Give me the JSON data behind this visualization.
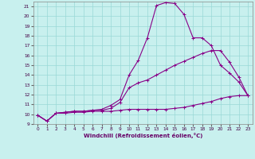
{
  "xlabel": "Windchill (Refroidissement éolien,°C)",
  "xlim": [
    -0.5,
    23.5
  ],
  "ylim": [
    9,
    21.5
  ],
  "xticks": [
    0,
    1,
    2,
    3,
    4,
    5,
    6,
    7,
    8,
    9,
    10,
    11,
    12,
    13,
    14,
    15,
    16,
    17,
    18,
    19,
    20,
    21,
    22,
    23
  ],
  "yticks": [
    9,
    10,
    11,
    12,
    13,
    14,
    15,
    16,
    17,
    18,
    19,
    20,
    21
  ],
  "bg_color": "#c8f0ee",
  "grid_color": "#99d9d6",
  "line_color": "#880088",
  "line1_x": [
    0,
    1,
    2,
    3,
    4,
    5,
    6,
    7,
    8,
    9,
    10,
    11,
    12,
    13,
    14,
    15,
    16,
    17,
    18,
    19,
    20,
    21,
    22,
    23
  ],
  "line1_y": [
    9.9,
    9.3,
    10.1,
    10.1,
    10.2,
    10.2,
    10.3,
    10.3,
    10.3,
    10.4,
    10.5,
    10.5,
    10.5,
    10.5,
    10.5,
    10.6,
    10.7,
    10.9,
    11.1,
    11.3,
    11.6,
    11.8,
    11.9,
    11.9
  ],
  "line2_x": [
    0,
    1,
    2,
    3,
    4,
    5,
    6,
    7,
    8,
    9,
    10,
    11,
    12,
    13,
    14,
    15,
    16,
    17,
    18,
    19,
    20,
    21,
    22,
    23
  ],
  "line2_y": [
    9.9,
    9.3,
    10.1,
    10.2,
    10.3,
    10.3,
    10.4,
    10.4,
    10.6,
    11.2,
    12.7,
    13.2,
    13.5,
    14.0,
    14.5,
    15.0,
    15.4,
    15.8,
    16.2,
    16.5,
    16.5,
    15.3,
    13.8,
    11.9
  ],
  "line3_x": [
    0,
    1,
    2,
    3,
    4,
    5,
    6,
    7,
    8,
    9,
    10,
    11,
    12,
    13,
    14,
    15,
    16,
    17,
    18,
    19,
    20,
    21,
    22,
    23
  ],
  "line3_y": [
    9.9,
    9.3,
    10.1,
    10.2,
    10.3,
    10.3,
    10.4,
    10.5,
    10.9,
    11.5,
    14.0,
    15.5,
    17.8,
    21.1,
    21.4,
    21.3,
    20.2,
    17.8,
    17.8,
    17.0,
    15.0,
    14.2,
    13.3,
    11.9
  ]
}
